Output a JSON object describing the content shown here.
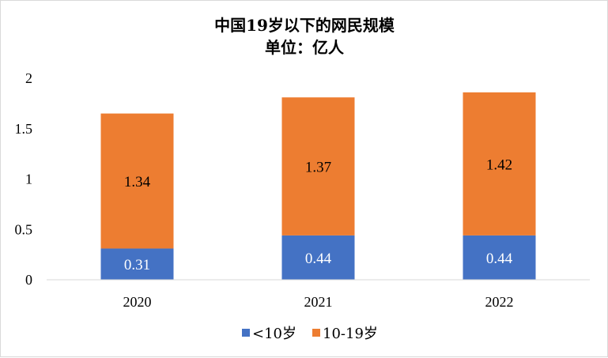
{
  "chart_data": {
    "type": "bar",
    "stacked": true,
    "title": "中国19岁以下的网民规模",
    "subtitle": "单位：亿人",
    "categories": [
      "2020",
      "2021",
      "2022"
    ],
    "series": [
      {
        "name": "<10岁",
        "values": [
          0.31,
          0.44,
          0.44
        ],
        "color": "#4472C4",
        "label_color": "#ffffff"
      },
      {
        "name": "10-19岁",
        "values": [
          1.34,
          1.37,
          1.42
        ],
        "color": "#ED7D31",
        "label_color": "#000000"
      }
    ],
    "yticks": [
      "0",
      "0.5",
      "1",
      "1.5",
      "2"
    ],
    "ylim": [
      0,
      2
    ],
    "grid": false,
    "legend_position": "bottom",
    "data_labels": [
      [
        "0.31",
        "0.44",
        "0.44"
      ],
      [
        "1.34",
        "1.37",
        "1.42"
      ]
    ]
  }
}
